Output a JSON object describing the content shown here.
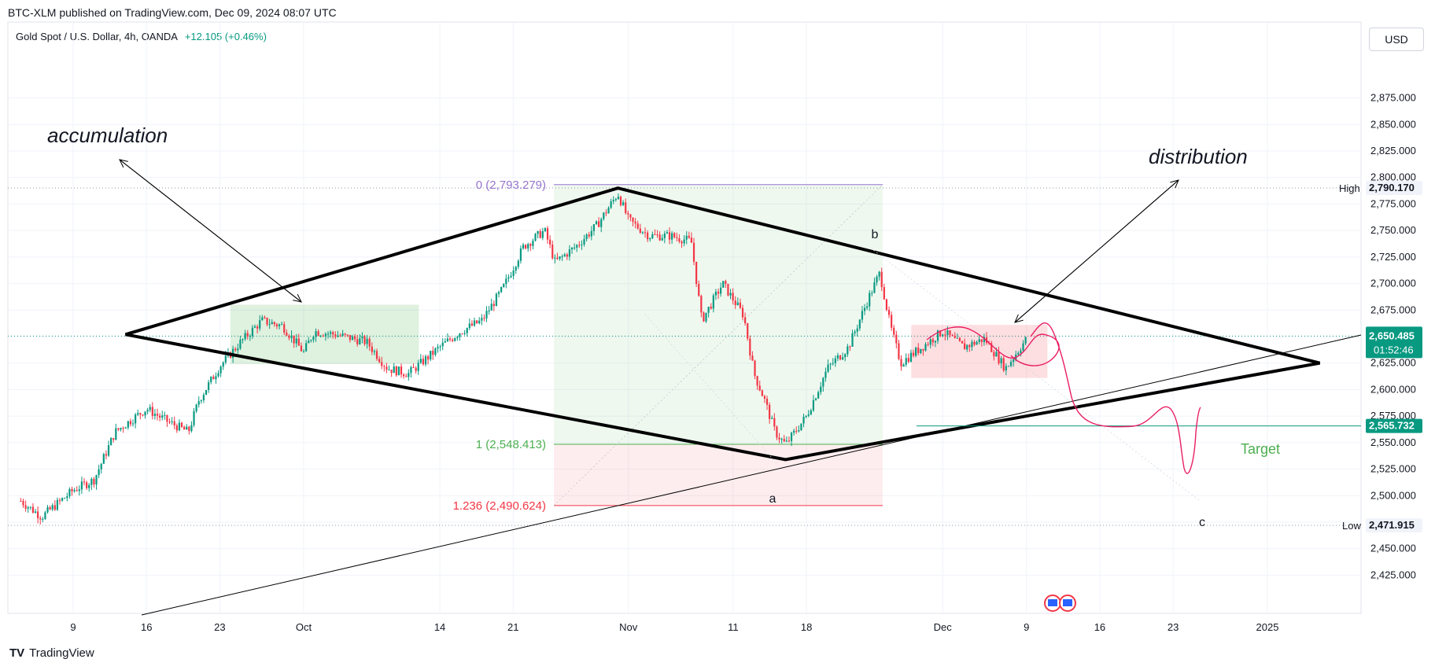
{
  "header": {
    "published": "BTC-XLM published on TradingView.com, Dec 09, 2024 08:07 UTC",
    "symbol": "Gold Spot / U.S. Dollar, 4h, OANDA",
    "change": "+12.105 (+0.46%)",
    "currency": "USD"
  },
  "footer": {
    "logo_text": "TradingView",
    "logo_mark": "TV"
  },
  "colors": {
    "up": "#089981",
    "down": "#f23645",
    "fib0": "#9575cd",
    "fib1": "#4caf50",
    "fib1236": "#f23645",
    "price_tag": "#089981",
    "pattern": "#000000",
    "projection": "#e91e63"
  },
  "chart_data": {
    "type": "candlestick",
    "title": "Gold Spot / U.S. Dollar, 4h, OANDA",
    "y_ticks": [
      2425,
      2450,
      2475,
      2500,
      2525,
      2550,
      2575,
      2600,
      2625,
      2650,
      2675,
      2700,
      2725,
      2750,
      2775,
      2800,
      2825,
      2850,
      2875
    ],
    "y_tick_labels": [
      "2,425.000",
      "2,450.000",
      "",
      "2,500.000",
      "2,525.000",
      "2,550.000",
      "2,575.000",
      "2,600.000",
      "2,625.000",
      "",
      "2,675.000",
      "2,700.000",
      "2,725.000",
      "2,750.000",
      "2,775.000",
      "2,800.000",
      "2,825.000",
      "2,850.000",
      "2,875.000"
    ],
    "x_ticks": [
      {
        "label": "9",
        "date": "2024-09-09"
      },
      {
        "label": "16",
        "date": "2024-09-16"
      },
      {
        "label": "23",
        "date": "2024-09-23"
      },
      {
        "label": "Oct",
        "date": "2024-10-01"
      },
      {
        "label": "14",
        "date": "2024-10-14"
      },
      {
        "label": "21",
        "date": "2024-10-21"
      },
      {
        "label": "Nov",
        "date": "2024-11-01"
      },
      {
        "label": "11",
        "date": "2024-11-11"
      },
      {
        "label": "18",
        "date": "2024-11-18"
      },
      {
        "label": "Dec",
        "date": "2024-12-01"
      },
      {
        "label": "9",
        "date": "2024-12-09"
      },
      {
        "label": "16",
        "date": "2024-12-16"
      },
      {
        "label": "23",
        "date": "2024-12-23"
      },
      {
        "label": "2025",
        "date": "2025-01-01"
      }
    ],
    "price_path": [
      [
        "2024-09-04",
        2495
      ],
      [
        "2024-09-06",
        2480
      ],
      [
        "2024-09-09",
        2505
      ],
      [
        "2024-09-11",
        2515
      ],
      [
        "2024-09-13",
        2560
      ],
      [
        "2024-09-16",
        2582
      ],
      [
        "2024-09-18",
        2570
      ],
      [
        "2024-09-20",
        2560
      ],
      [
        "2024-09-21",
        2590
      ],
      [
        "2024-09-23",
        2622
      ],
      [
        "2024-09-25",
        2645
      ],
      [
        "2024-09-27",
        2665
      ],
      [
        "2024-09-29",
        2660
      ],
      [
        "2024-10-01",
        2635
      ],
      [
        "2024-10-02",
        2655
      ],
      [
        "2024-10-04",
        2652
      ],
      [
        "2024-10-07",
        2645
      ],
      [
        "2024-10-09",
        2620
      ],
      [
        "2024-10-11",
        2615
      ],
      [
        "2024-10-14",
        2640
      ],
      [
        "2024-10-16",
        2655
      ],
      [
        "2024-10-18",
        2665
      ],
      [
        "2024-10-20",
        2695
      ],
      [
        "2024-10-22",
        2735
      ],
      [
        "2024-10-24",
        2750
      ],
      [
        "2024-10-25",
        2720
      ],
      [
        "2024-10-27",
        2735
      ],
      [
        "2024-10-29",
        2755
      ],
      [
        "2024-10-31",
        2785
      ],
      [
        "2024-11-01",
        2760
      ],
      [
        "2024-11-03",
        2745
      ],
      [
        "2024-11-05",
        2745
      ],
      [
        "2024-11-07",
        2740
      ],
      [
        "2024-11-08",
        2665
      ],
      [
        "2024-11-10",
        2700
      ],
      [
        "2024-11-12",
        2670
      ],
      [
        "2024-11-13",
        2615
      ],
      [
        "2024-11-14",
        2590
      ],
      [
        "2024-11-15",
        2560
      ],
      [
        "2024-11-16",
        2548
      ],
      [
        "2024-11-18",
        2575
      ],
      [
        "2024-11-20",
        2620
      ],
      [
        "2024-11-22",
        2640
      ],
      [
        "2024-11-24",
        2688
      ],
      [
        "2024-11-25",
        2710
      ],
      [
        "2024-11-26",
        2660
      ],
      [
        "2024-11-27",
        2625
      ],
      [
        "2024-11-29",
        2640
      ],
      [
        "2024-12-01",
        2655
      ],
      [
        "2024-12-03",
        2640
      ],
      [
        "2024-12-05",
        2648
      ],
      [
        "2024-12-07",
        2620
      ],
      [
        "2024-12-09",
        2648
      ]
    ],
    "current_price": "2,650.485",
    "countdown": "01:52:46",
    "high": {
      "label": "High",
      "value": 2790.17,
      "text": "2,790.170"
    },
    "low": {
      "label": "Low",
      "value": 2471.915,
      "text": "2,471.915"
    },
    "target": {
      "label": "Target",
      "value": 2565.732,
      "text": "2,565.732"
    },
    "fib": [
      {
        "level": "0",
        "value": 2793.279,
        "text": "0 (2,793.279)"
      },
      {
        "level": "1",
        "value": 2548.413,
        "text": "1 (2,548.413)"
      },
      {
        "level": "1.236",
        "value": 2490.624,
        "text": "1.236 (2,490.624)"
      }
    ],
    "zones": [
      {
        "name": "accumulation-zone",
        "from": "2024-09-24",
        "to": "2024-10-12",
        "low": 2624,
        "high": 2680
      },
      {
        "name": "distribution-zone",
        "from": "2024-11-28",
        "to": "2024-12-11",
        "low": 2611,
        "high": 2661
      }
    ],
    "pattern_points": [
      [
        "2024-09-14",
        2652
      ],
      [
        "2024-10-31",
        2790
      ],
      [
        "2025-01-06",
        2625
      ],
      [
        "2024-11-16",
        2534
      ]
    ],
    "annotations": {
      "accumulation": "accumulation",
      "distribution": "distribution",
      "target": "Target",
      "wave_a": "a",
      "wave_b": "b",
      "wave_c": "c"
    }
  }
}
